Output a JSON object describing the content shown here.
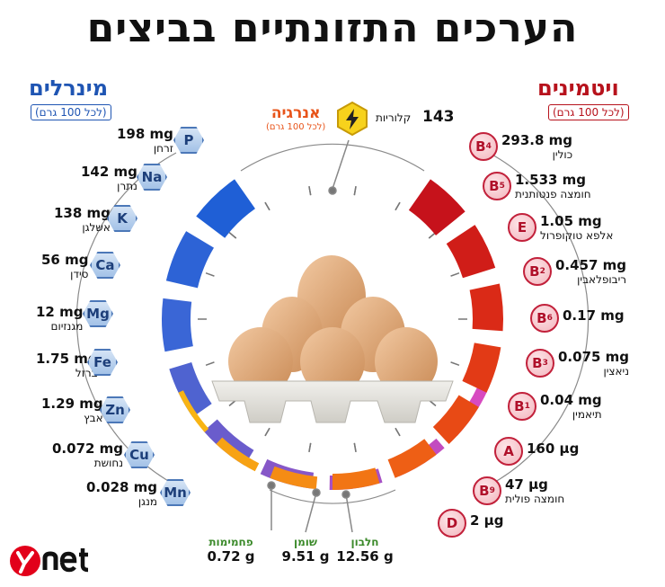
{
  "title": "הערכים התזונתיים בביצים",
  "minerals": {
    "heading": "מינרלים",
    "sub": "(לכל 100 גרם)",
    "items": [
      {
        "symbol": "P",
        "value": "198 mg",
        "name": "זרחן"
      },
      {
        "symbol": "Na",
        "value": "142 mg",
        "name": "נתרן"
      },
      {
        "symbol": "K",
        "value": "138 mg",
        "name": "אשלגן"
      },
      {
        "symbol": "Ca",
        "value": "56 mg",
        "name": "סידן"
      },
      {
        "symbol": "Mg",
        "value": "12 mg",
        "name": "מגנזיום"
      },
      {
        "symbol": "Fe",
        "value": "1.75 mg",
        "name": "ברזל"
      },
      {
        "symbol": "Zn",
        "value": "1.29 mg",
        "name": "אבץ"
      },
      {
        "symbol": "Cu",
        "value": "0.072 mg",
        "name": "נחושת"
      },
      {
        "symbol": "Mn",
        "value": "0.028 mg",
        "name": "מנגן"
      }
    ]
  },
  "vitamins": {
    "heading": "ויטמינים",
    "sub": "(לכל 100 גרם)",
    "items": [
      {
        "symbol": "B",
        "sub": "4",
        "value": "293.8 mg",
        "name": "כולין"
      },
      {
        "symbol": "B",
        "sub": "5",
        "value": "1.533 mg",
        "name": "חומצה פנטותנית"
      },
      {
        "symbol": "E",
        "sub": "",
        "value": "1.05 mg",
        "name": "אלפא טוקופרול"
      },
      {
        "symbol": "B",
        "sub": "2",
        "value": "0.457 mg",
        "name": "ריבופלאבין"
      },
      {
        "symbol": "B",
        "sub": "6",
        "value": "0.17 mg",
        "name": ""
      },
      {
        "symbol": "B",
        "sub": "3",
        "value": "0.075 mg",
        "name": "ניאצין"
      },
      {
        "symbol": "B",
        "sub": "1",
        "value": "0.04 mg",
        "name": "תיאמין"
      },
      {
        "symbol": "A",
        "sub": "",
        "value": "160 µg",
        "name": ""
      },
      {
        "symbol": "B",
        "sub": "9",
        "value": "47 µg",
        "name": "חומצה פולית"
      },
      {
        "symbol": "D",
        "sub": "",
        "value": "2 µg",
        "name": ""
      }
    ]
  },
  "energy": {
    "heading": "אנרגיה",
    "sub": "(לכל 100 גרם)",
    "value": "143",
    "unit": "קלוריות"
  },
  "macros": [
    {
      "name": "פחמימות",
      "value": "0.72 g"
    },
    {
      "name": "שומן",
      "value": "9.51 g"
    },
    {
      "name": "חלבון",
      "value": "12.56 g"
    }
  ],
  "logo": "ynet",
  "colors": {
    "mineral_accent": "#1f55b3",
    "vitamin_accent": "#b7121c",
    "energy_accent": "#e8541a",
    "macro_accent": "#3b8a2a",
    "logo_red": "#e2001a"
  }
}
